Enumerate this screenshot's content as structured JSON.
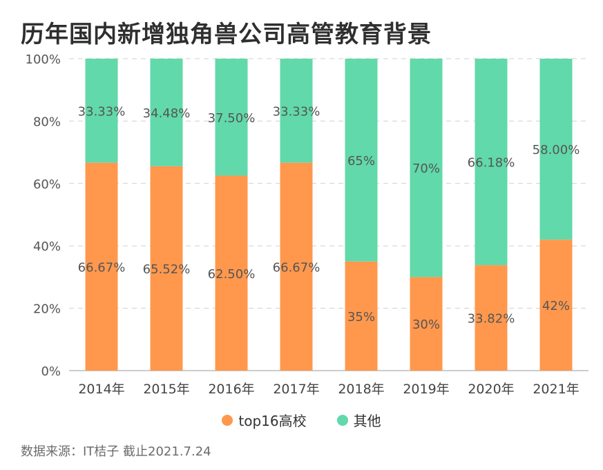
{
  "title": "历年国内新增独角兽公司高管教育背景",
  "source": "数据来源：IT桔子 截止2021.7.24",
  "colors": {
    "top16": "#FF984D",
    "other": "#61D9AA"
  },
  "chart_data": {
    "type": "bar",
    "stacked": true,
    "categories": [
      "2014年",
      "2015年",
      "2016年",
      "2017年",
      "2018年",
      "2019年",
      "2020年",
      "2021年"
    ],
    "series": [
      {
        "name": "top16高校",
        "values": [
          66.67,
          65.52,
          62.5,
          66.67,
          35,
          30,
          33.82,
          42
        ],
        "labels": [
          "66.67%",
          "65.52%",
          "62.50%",
          "66.67%",
          "35%",
          "30%",
          "33.82%",
          "42%"
        ]
      },
      {
        "name": "其他",
        "values": [
          33.33,
          34.48,
          37.5,
          33.33,
          65,
          70,
          66.18,
          58
        ],
        "labels": [
          "33.33%",
          "34.48%",
          "37.50%",
          "33.33%",
          "65%",
          "70%",
          "66.18%",
          "58.00%"
        ]
      }
    ],
    "yticks": [
      "0%",
      "20%",
      "40%",
      "60%",
      "80%",
      "100%"
    ],
    "ylim": [
      0,
      100
    ],
    "grid": true,
    "legend_position": "bottom"
  }
}
